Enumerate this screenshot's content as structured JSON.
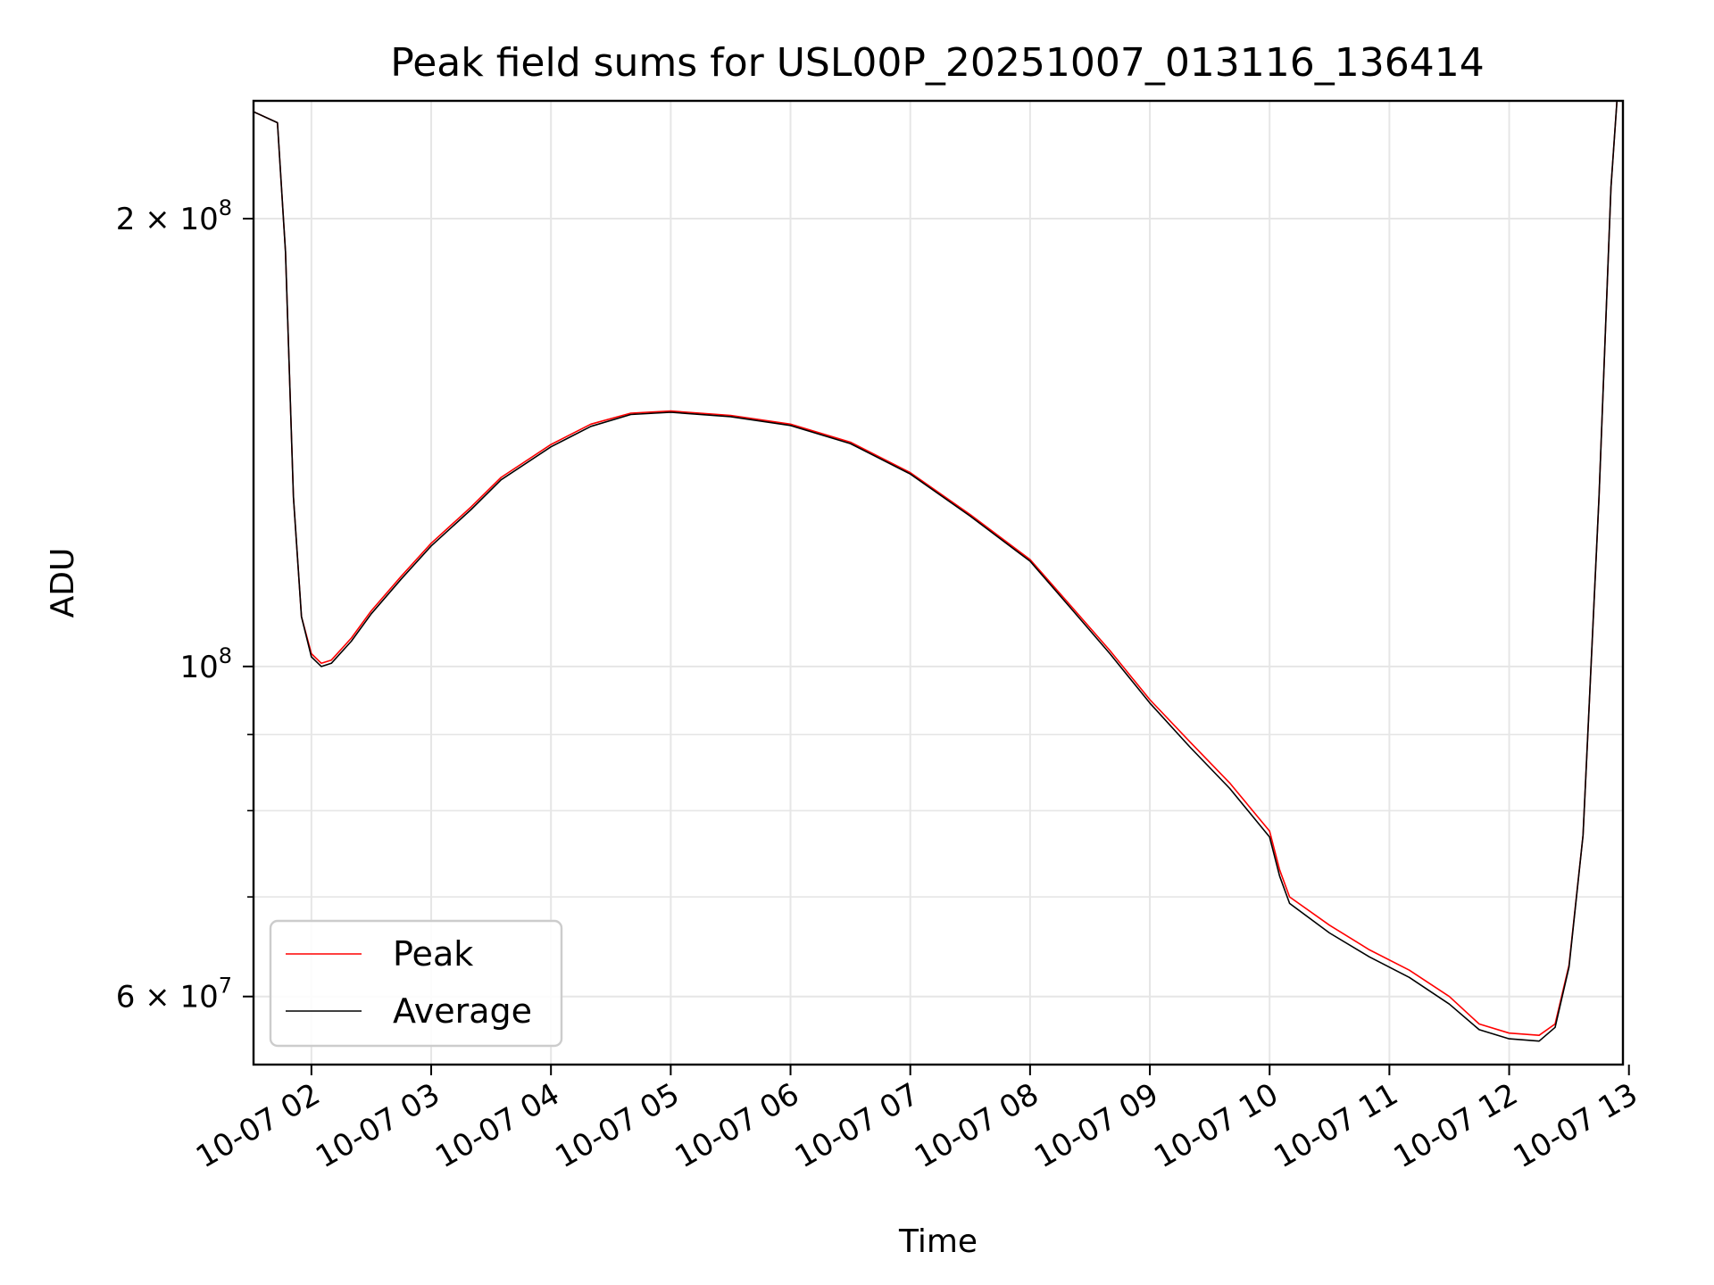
{
  "chart_data": {
    "type": "line",
    "title": "Peak field sums for USL00P_20251007_013116_136414",
    "xlabel": "Time",
    "ylabel": "ADU",
    "y_scale": "log",
    "ylim": [
      54000000,
      240000000
    ],
    "xlim": [
      "2025-10-07 01:31",
      "2025-10-07 12:57"
    ],
    "grid": true,
    "legend": {
      "placement": "lower-left",
      "entries": [
        "Peak",
        "Average"
      ]
    },
    "x_ticks": [
      "10-07 02",
      "10-07 03",
      "10-07 04",
      "10-07 05",
      "10-07 06",
      "10-07 07",
      "10-07 08",
      "10-07 09",
      "10-07 10",
      "10-07 11",
      "10-07 12",
      "10-07 13"
    ],
    "x_tick_values": [
      "2025-10-07 02:00",
      "2025-10-07 03:00",
      "2025-10-07 04:00",
      "2025-10-07 05:00",
      "2025-10-07 06:00",
      "2025-10-07 07:00",
      "2025-10-07 08:00",
      "2025-10-07 09:00",
      "2025-10-07 10:00",
      "2025-10-07 11:00",
      "2025-10-07 12:00",
      "2025-10-07 13:00"
    ],
    "y_ticks": [
      {
        "value": 200000000,
        "base": "2 × 10",
        "exp": "8"
      },
      {
        "value": 100000000,
        "base": "10",
        "exp": "8"
      },
      {
        "value": 60000000,
        "base": "6 × 10",
        "exp": "7"
      }
    ],
    "y_minor_ticks": [
      70000000,
      80000000,
      90000000
    ],
    "series": [
      {
        "name": "Peak",
        "color": "#ff0000",
        "points": [
          [
            "2025-10-07 01:31",
            236000000
          ],
          [
            "2025-10-07 01:43",
            232000000
          ],
          [
            "2025-10-07 01:47",
            190000000
          ],
          [
            "2025-10-07 01:51",
            130000000
          ],
          [
            "2025-10-07 01:55",
            108000000
          ],
          [
            "2025-10-07 02:00",
            102000000
          ],
          [
            "2025-10-07 02:05",
            100500000
          ],
          [
            "2025-10-07 02:10",
            101000000
          ],
          [
            "2025-10-07 02:20",
            104500000
          ],
          [
            "2025-10-07 02:30",
            109000000
          ],
          [
            "2025-10-07 02:45",
            115000000
          ],
          [
            "2025-10-07 03:00",
            121000000
          ],
          [
            "2025-10-07 03:20",
            128000000
          ],
          [
            "2025-10-07 03:35",
            134000000
          ],
          [
            "2025-10-07 04:00",
            141000000
          ],
          [
            "2025-10-07 04:20",
            145500000
          ],
          [
            "2025-10-07 04:40",
            148000000
          ],
          [
            "2025-10-07 05:00",
            148500000
          ],
          [
            "2025-10-07 05:30",
            147500000
          ],
          [
            "2025-10-07 06:00",
            145500000
          ],
          [
            "2025-10-07 06:30",
            141500000
          ],
          [
            "2025-10-07 07:00",
            135000000
          ],
          [
            "2025-10-07 07:30",
            126500000
          ],
          [
            "2025-10-07 08:00",
            118000000
          ],
          [
            "2025-10-07 08:20",
            110000000
          ],
          [
            "2025-10-07 08:40",
            102500000
          ],
          [
            "2025-10-07 09:00",
            95000000
          ],
          [
            "2025-10-07 09:20",
            89000000
          ],
          [
            "2025-10-07 09:40",
            83500000
          ],
          [
            "2025-10-07 10:00",
            77500000
          ],
          [
            "2025-10-07 10:05",
            73000000
          ],
          [
            "2025-10-07 10:10",
            70000000
          ],
          [
            "2025-10-07 10:30",
            67000000
          ],
          [
            "2025-10-07 10:50",
            64500000
          ],
          [
            "2025-10-07 11:10",
            62500000
          ],
          [
            "2025-10-07 11:30",
            60000000
          ],
          [
            "2025-10-07 11:45",
            57500000
          ],
          [
            "2025-10-07 12:00",
            56700000
          ],
          [
            "2025-10-07 12:15",
            56500000
          ],
          [
            "2025-10-07 12:23",
            57500000
          ],
          [
            "2025-10-07 12:30",
            63000000
          ],
          [
            "2025-10-07 12:37",
            77000000
          ],
          [
            "2025-10-07 12:45",
            130000000
          ],
          [
            "2025-10-07 12:51",
            210000000
          ],
          [
            "2025-10-07 12:54",
            240000000
          ]
        ]
      },
      {
        "name": "Average",
        "color": "#000000",
        "points": [
          [
            "2025-10-07 01:31",
            236000000
          ],
          [
            "2025-10-07 01:43",
            232000000
          ],
          [
            "2025-10-07 01:47",
            190000000
          ],
          [
            "2025-10-07 01:51",
            130000000
          ],
          [
            "2025-10-07 01:55",
            108000000
          ],
          [
            "2025-10-07 02:00",
            101500000
          ],
          [
            "2025-10-07 02:05",
            100000000
          ],
          [
            "2025-10-07 02:10",
            100500000
          ],
          [
            "2025-10-07 02:20",
            104000000
          ],
          [
            "2025-10-07 02:30",
            108500000
          ],
          [
            "2025-10-07 02:45",
            114500000
          ],
          [
            "2025-10-07 03:00",
            120500000
          ],
          [
            "2025-10-07 03:20",
            127500000
          ],
          [
            "2025-10-07 03:35",
            133500000
          ],
          [
            "2025-10-07 04:00",
            140500000
          ],
          [
            "2025-10-07 04:20",
            145000000
          ],
          [
            "2025-10-07 04:40",
            147700000
          ],
          [
            "2025-10-07 05:00",
            148200000
          ],
          [
            "2025-10-07 05:30",
            147200000
          ],
          [
            "2025-10-07 06:00",
            145200000
          ],
          [
            "2025-10-07 06:30",
            141200000
          ],
          [
            "2025-10-07 07:00",
            134700000
          ],
          [
            "2025-10-07 07:30",
            126200000
          ],
          [
            "2025-10-07 08:00",
            117700000
          ],
          [
            "2025-10-07 08:20",
            109600000
          ],
          [
            "2025-10-07 08:40",
            102000000
          ],
          [
            "2025-10-07 09:00",
            94500000
          ],
          [
            "2025-10-07 09:20",
            88300000
          ],
          [
            "2025-10-07 09:40",
            82800000
          ],
          [
            "2025-10-07 10:00",
            76800000
          ],
          [
            "2025-10-07 10:05",
            72300000
          ],
          [
            "2025-10-07 10:10",
            69300000
          ],
          [
            "2025-10-07 10:30",
            66200000
          ],
          [
            "2025-10-07 10:50",
            63800000
          ],
          [
            "2025-10-07 11:10",
            61800000
          ],
          [
            "2025-10-07 11:30",
            59300000
          ],
          [
            "2025-10-07 11:45",
            57000000
          ],
          [
            "2025-10-07 12:00",
            56200000
          ],
          [
            "2025-10-07 12:15",
            56000000
          ],
          [
            "2025-10-07 12:23",
            57200000
          ],
          [
            "2025-10-07 12:30",
            62800000
          ],
          [
            "2025-10-07 12:37",
            77000000
          ],
          [
            "2025-10-07 12:45",
            130000000
          ],
          [
            "2025-10-07 12:51",
            210000000
          ],
          [
            "2025-10-07 12:54",
            240000000
          ]
        ]
      }
    ]
  }
}
